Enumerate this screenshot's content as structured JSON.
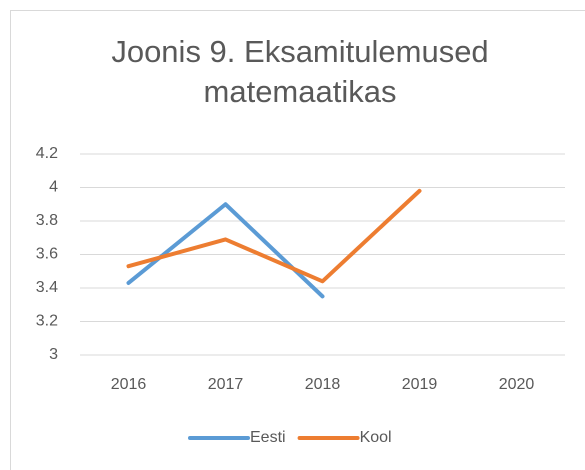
{
  "chart_data": {
    "type": "line",
    "title": "Joonis 9. Eksamitulemused matemaatikas",
    "categories": [
      "2016",
      "2017",
      "2018",
      "2019",
      "2020"
    ],
    "series": [
      {
        "name": "Eesti",
        "color": "#5b9bd5",
        "values": [
          3.43,
          3.9,
          3.35,
          null,
          null
        ]
      },
      {
        "name": "Kool",
        "color": "#ed7d31",
        "values": [
          3.53,
          3.69,
          3.44,
          3.98,
          null
        ]
      }
    ],
    "ylim": [
      3,
      4.2
    ],
    "yticks": [
      3,
      3.2,
      3.4,
      3.6,
      3.8,
      4,
      4.2
    ],
    "grid": true,
    "legend": "bottom"
  }
}
